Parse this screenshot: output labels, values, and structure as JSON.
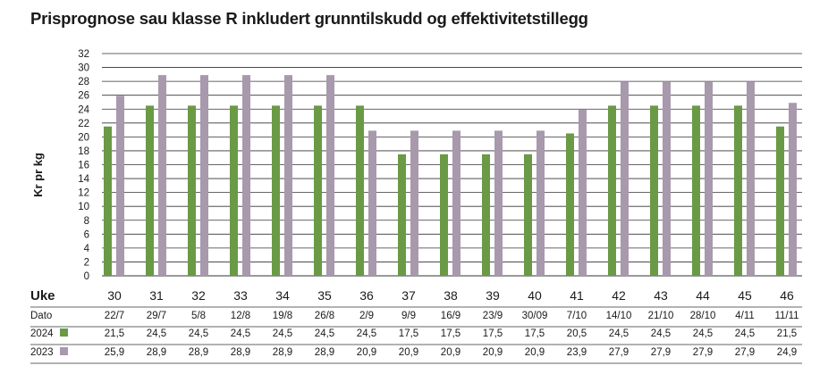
{
  "title": "Prisprognose sau klasse R inkludert grunntilskudd og effektivitetstillegg",
  "colors": {
    "2024": "#6a9a45",
    "2023": "#a899ad",
    "grid": "#333333",
    "text": "#1a1a1a"
  },
  "table": {
    "week_header": "Uke",
    "date_header": "Dato"
  },
  "chart_data": {
    "type": "bar",
    "title": "Prisprognose sau klasse R inkludert grunntilskudd og effektivitetstillegg",
    "ylabel": "Kr pr kg",
    "ylim": [
      0,
      32
    ],
    "yticks": [
      0,
      2,
      4,
      6,
      8,
      10,
      12,
      14,
      16,
      18,
      20,
      22,
      24,
      26,
      28,
      30,
      32
    ],
    "grid": true,
    "categories": [
      "30",
      "31",
      "32",
      "33",
      "34",
      "35",
      "36",
      "37",
      "38",
      "39",
      "40",
      "41",
      "42",
      "43",
      "44",
      "45",
      "46"
    ],
    "dates": [
      "22/7",
      "29/7",
      "5/8",
      "12/8",
      "19/8",
      "26/8",
      "2/9",
      "9/9",
      "16/9",
      "23/9",
      "30/09",
      "7/10",
      "14/10",
      "21/10",
      "28/10",
      "4/11",
      "11/11"
    ],
    "series": [
      {
        "name": "2024",
        "values": [
          21.5,
          24.5,
          24.5,
          24.5,
          24.5,
          24.5,
          24.5,
          17.5,
          17.5,
          17.5,
          17.5,
          20.5,
          24.5,
          24.5,
          24.5,
          24.5,
          21.5
        ],
        "labels": [
          "21,5",
          "24,5",
          "24,5",
          "24,5",
          "24,5",
          "24,5",
          "24,5",
          "17,5",
          "17,5",
          "17,5",
          "17,5",
          "20,5",
          "24,5",
          "24,5",
          "24,5",
          "24,5",
          "21,5"
        ]
      },
      {
        "name": "2023",
        "values": [
          25.9,
          28.9,
          28.9,
          28.9,
          28.9,
          28.9,
          20.9,
          20.9,
          20.9,
          20.9,
          20.9,
          23.9,
          27.9,
          27.9,
          27.9,
          27.9,
          24.9
        ],
        "labels": [
          "25,9",
          "28,9",
          "28,9",
          "28,9",
          "28,9",
          "28,9",
          "20,9",
          "20,9",
          "20,9",
          "20,9",
          "20,9",
          "23,9",
          "27,9",
          "27,9",
          "27,9",
          "27,9",
          "24,9"
        ]
      }
    ]
  }
}
